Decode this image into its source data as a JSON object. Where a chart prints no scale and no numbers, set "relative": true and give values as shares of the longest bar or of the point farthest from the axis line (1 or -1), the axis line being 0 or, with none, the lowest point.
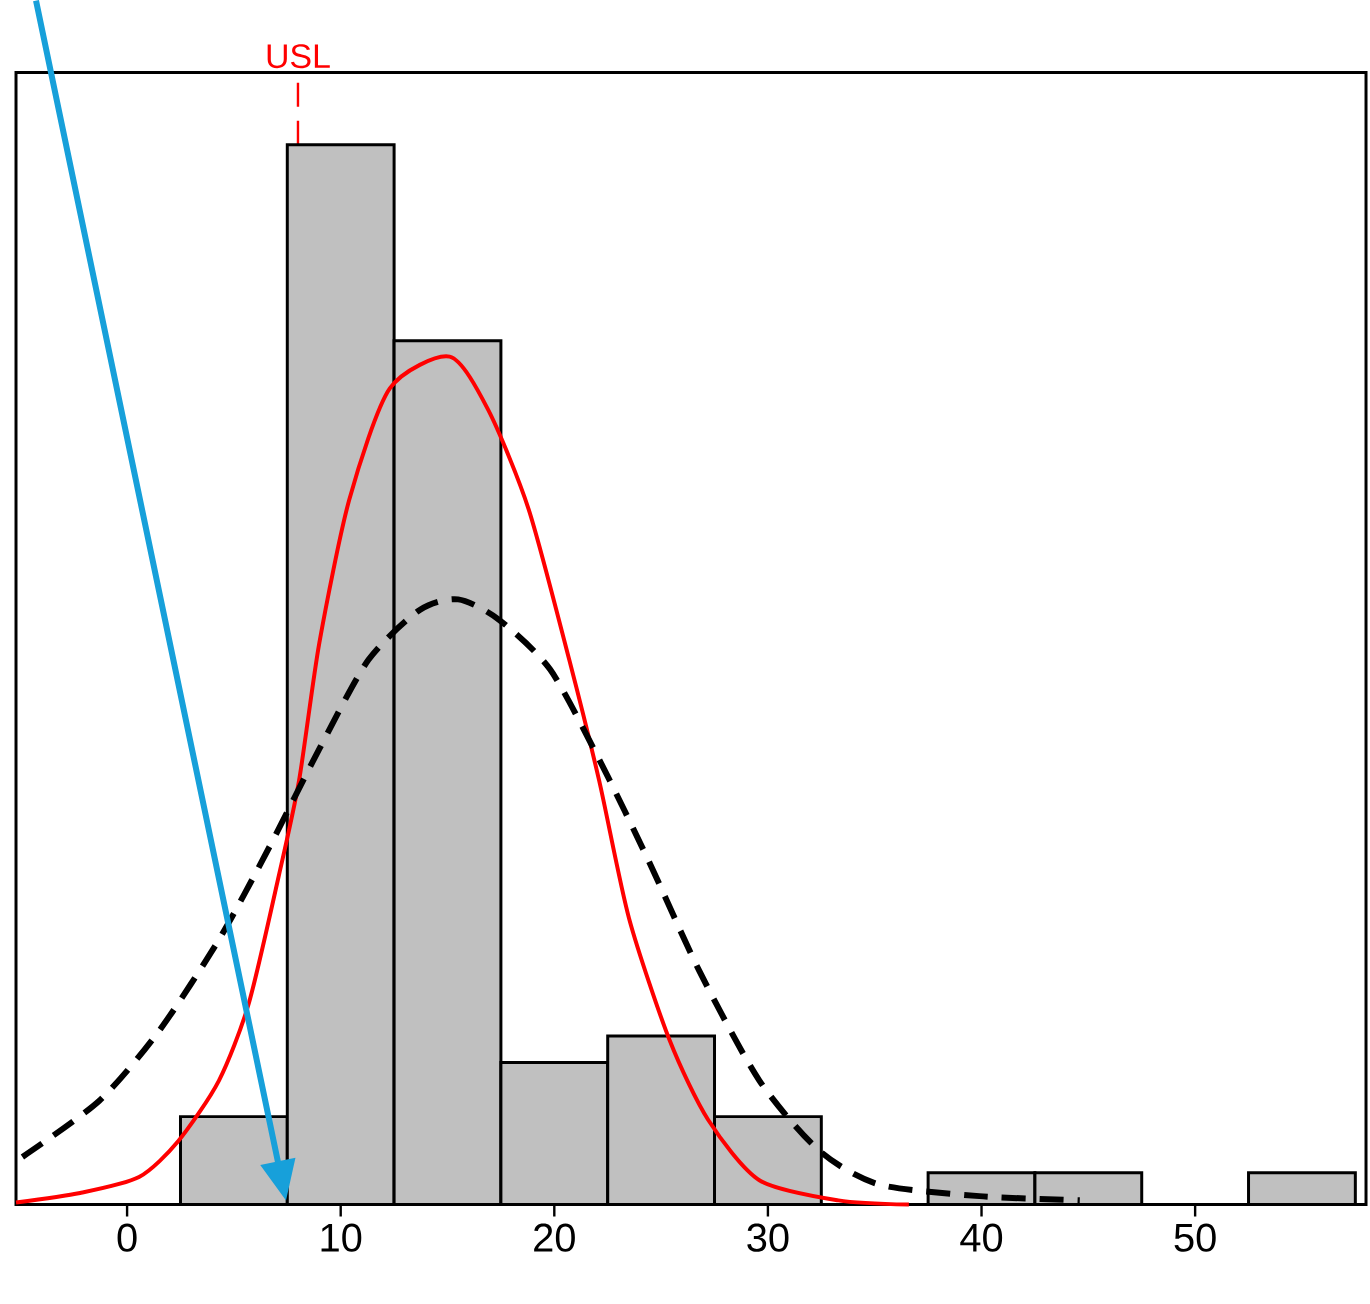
{
  "chart_data": {
    "type": "histogram",
    "relative": true,
    "color": "#c0c0c0",
    "bins": [
      2.5,
      7.5,
      12.5,
      17.5,
      22.5,
      27.5,
      32.5,
      37.5,
      42.5,
      47.5,
      52.5,
      57.5
    ],
    "values": [
      0.083,
      1,
      0.815,
      0.134,
      0.159,
      0.083,
      0,
      0.03,
      0.03,
      0,
      0.03
    ],
    "xlim": [
      -5.2,
      58
    ],
    "xticks": [
      0,
      10,
      20,
      30,
      40,
      50
    ],
    "series": [
      {
        "type": "line",
        "color": "#ff0000",
        "line_style": "solid",
        "x": [
          -5.2,
          -2.2,
          0.56,
          2.4,
          4.3,
          5.7,
          7.1,
          8.05,
          9.0,
          10.4,
          12.3,
          15.1,
          16.9,
          18.8,
          20.7,
          22.1,
          23.5,
          25.4,
          27.2,
          29.6,
          33.3,
          36.6
        ],
        "values": [
          0.002,
          0.011,
          0.026,
          0.06,
          0.117,
          0.19,
          0.31,
          0.4,
          0.53,
          0.665,
          0.77,
          0.8,
          0.75,
          0.656,
          0.514,
          0.4,
          0.27,
          0.155,
          0.08,
          0.023,
          0.004,
          0
        ]
      },
      {
        "type": "line",
        "color": "#000000",
        "line_style": "dashed",
        "x": [
          -4.9,
          -1.3,
          1.5,
          4.3,
          6.6,
          9.0,
          11.3,
          13.7,
          15.5,
          17.4,
          19.8,
          22.1,
          24.4,
          26.8,
          29.6,
          32.4,
          35.2,
          39.9,
          44.6
        ],
        "values": [
          0.045,
          0.098,
          0.164,
          0.25,
          0.335,
          0.43,
          0.514,
          0.561,
          0.571,
          0.552,
          0.505,
          0.42,
          0.325,
          0.22,
          0.117,
          0.051,
          0.019,
          0.008,
          0.004
        ]
      }
    ],
    "ref_lines": [
      {
        "axis": "x",
        "value": 8,
        "label": "USL",
        "color": "#ff0000",
        "line_style": "dashed"
      }
    ]
  }
}
